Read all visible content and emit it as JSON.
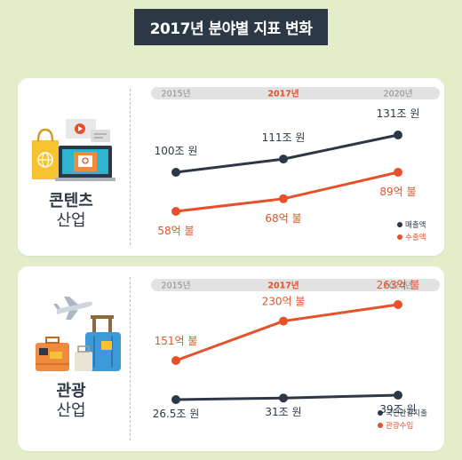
{
  "title": "2017년 분야별 지표 변화",
  "colors": {
    "dark": "#2d3847",
    "orange": "#e6512a",
    "background": "#e4edca",
    "axis_bar": "#e2e2e2"
  },
  "icons": [
    "shopping-bag-icon",
    "laptop-icon",
    "video-bubble-icon",
    "airplane-icon",
    "suitcase-icon",
    "luggage-icon"
  ],
  "sectors": [
    {
      "line1": "콘텐츠",
      "line2": "산업"
    },
    {
      "line1": "관광",
      "line2": "산업"
    }
  ],
  "chart_data": [
    {
      "type": "line",
      "categories": [
        "2015년",
        "2017년",
        "2020년"
      ],
      "highlight_category": "2017년",
      "legend_position": "bottom-right",
      "series": [
        {
          "name": "매출액",
          "values": [
            100,
            111,
            131
          ],
          "labels": [
            "100조 원",
            "111조 원",
            "131조 원"
          ],
          "color": "#2d3847"
        },
        {
          "name": "수출액",
          "values": [
            58,
            68,
            89
          ],
          "labels": [
            "58억 불",
            "68억 불",
            "89억 불"
          ],
          "color": "#e6512a"
        }
      ]
    },
    {
      "type": "line",
      "categories": [
        "2015년",
        "2017년",
        "2020년"
      ],
      "highlight_category": "2017년",
      "legend_position": "bottom-right",
      "series": [
        {
          "name": "국민관광지출",
          "values": [
            26.5,
            31,
            39
          ],
          "labels": [
            "26.5조 원",
            "31조 원",
            "39조 원"
          ],
          "color": "#2d3847"
        },
        {
          "name": "관광수입",
          "values": [
            151,
            230,
            263
          ],
          "labels": [
            "151억 불",
            "230억 불",
            "263억 불"
          ],
          "color": "#e6512a"
        }
      ]
    }
  ]
}
